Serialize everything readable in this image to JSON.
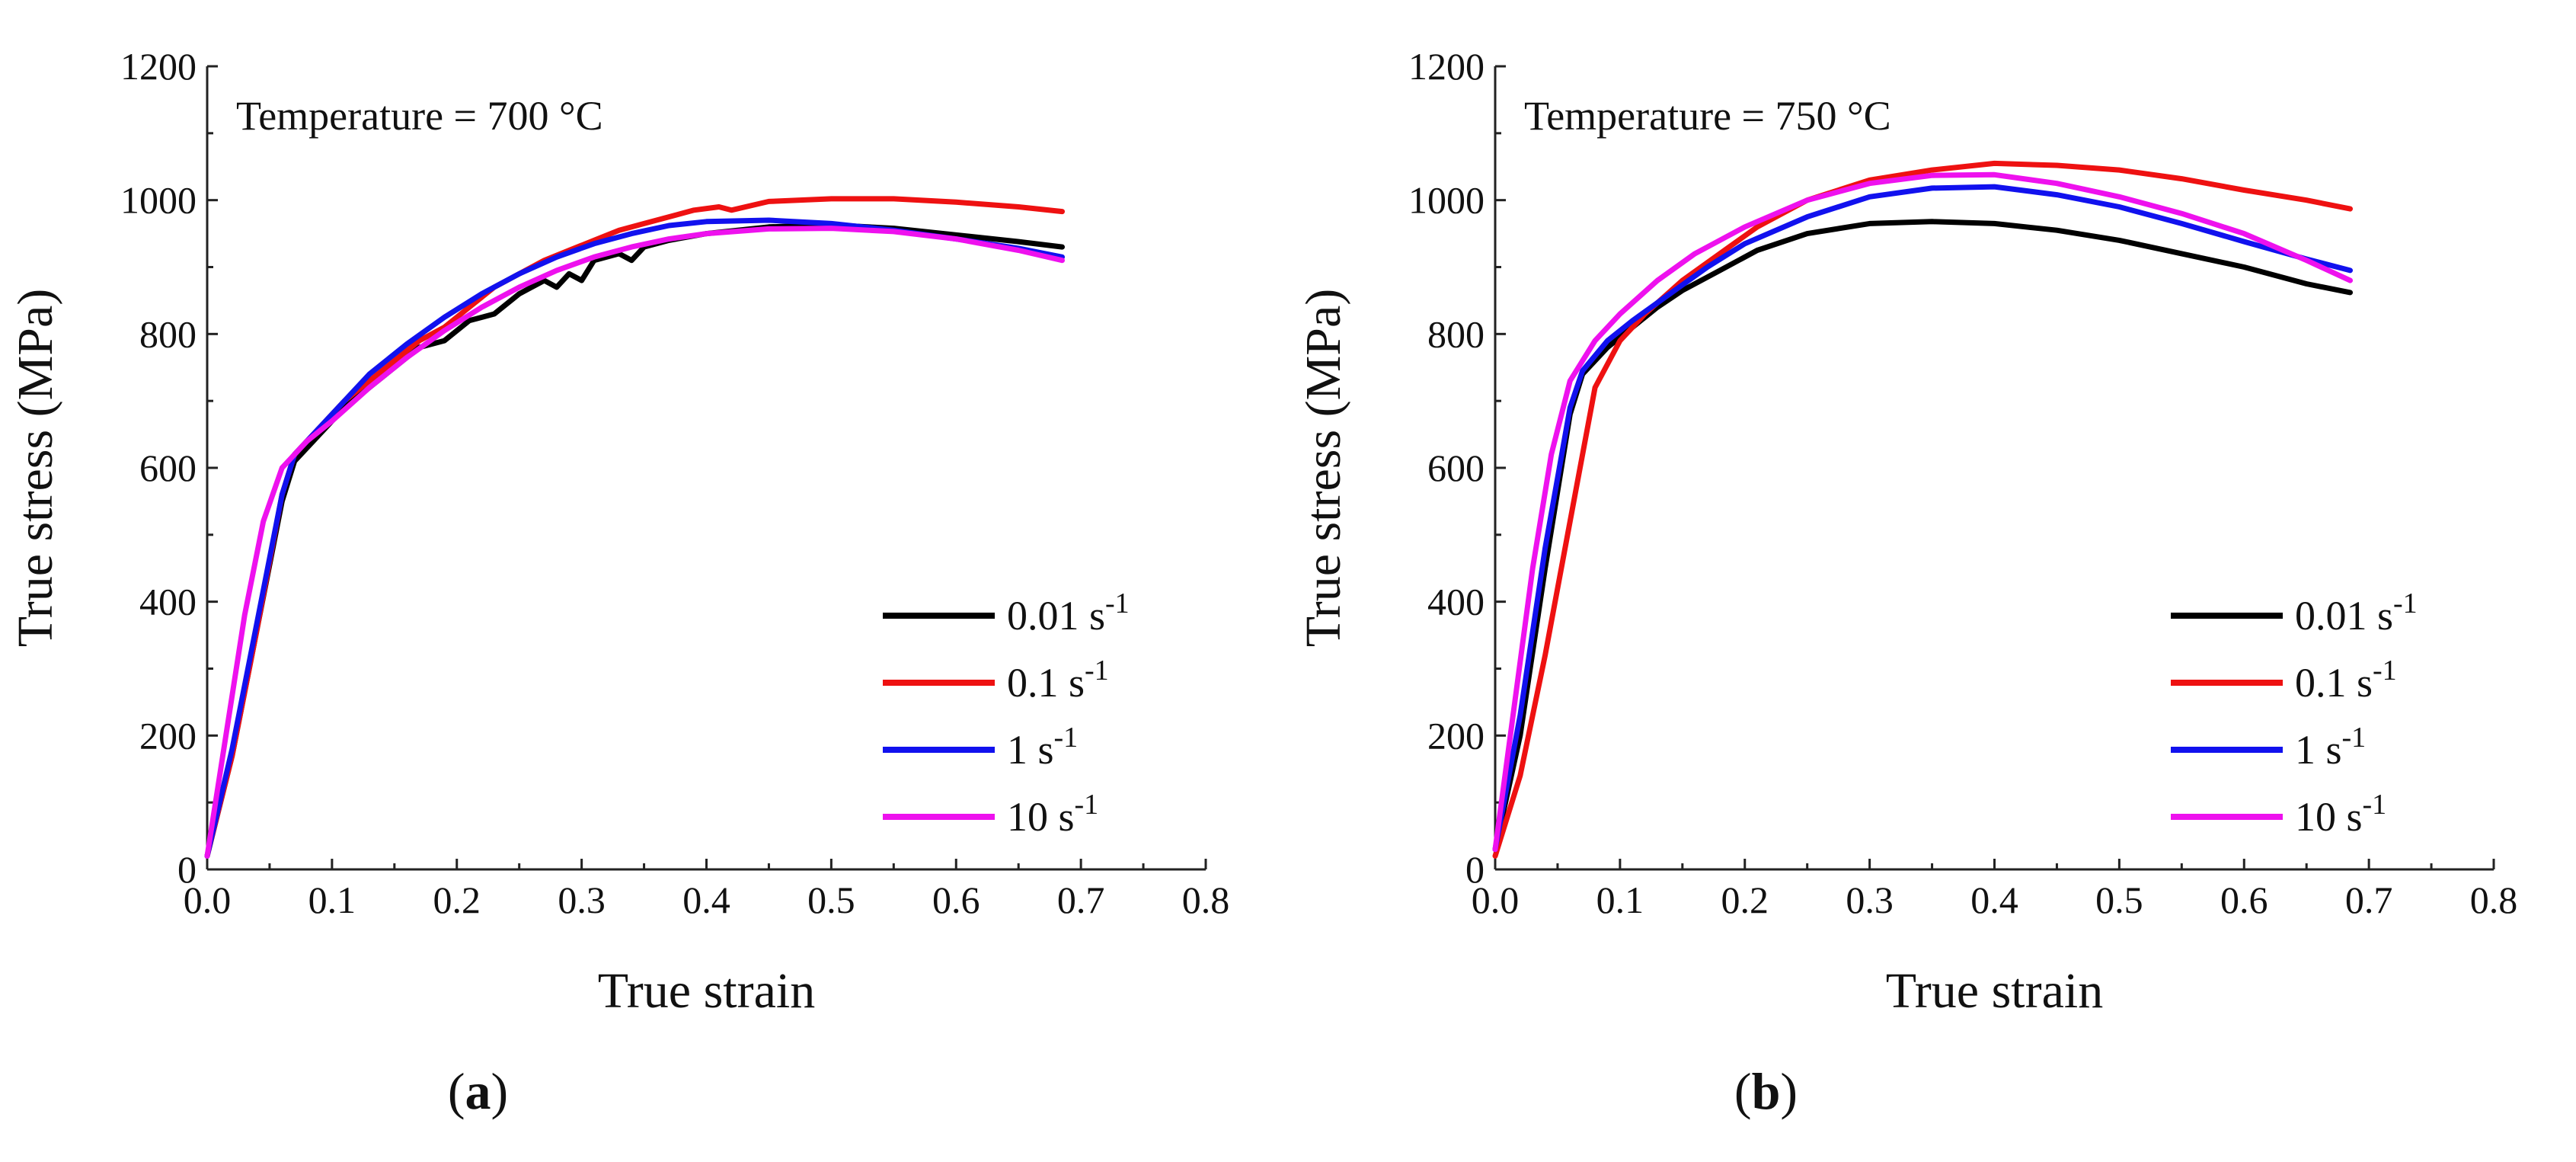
{
  "chart_data": [
    {
      "type": "line",
      "panel_label": "(a)",
      "annotation": "Temperature = 700 °C",
      "xlabel": "True strain",
      "ylabel": "True stress (MPa)",
      "xlim": [
        0,
        0.8
      ],
      "ylim": [
        0,
        1200
      ],
      "xticks": [
        "0.0",
        "0.1",
        "0.2",
        "0.3",
        "0.4",
        "0.5",
        "0.6",
        "0.7",
        "0.8"
      ],
      "yticks": [
        "0",
        "200",
        "400",
        "600",
        "800",
        "1000",
        "1200"
      ],
      "grid": false,
      "legend_position": "bottom-right",
      "series": [
        {
          "name": "0.01 s-1",
          "color": "#000000",
          "x": [
            0,
            0.02,
            0.04,
            0.06,
            0.07,
            0.09,
            0.11,
            0.13,
            0.15,
            0.17,
            0.19,
            0.21,
            0.23,
            0.25,
            0.27,
            0.28,
            0.29,
            0.3,
            0.31,
            0.33,
            0.34,
            0.35,
            0.37,
            0.4,
            0.45,
            0.5,
            0.55,
            0.6,
            0.65,
            0.685
          ],
          "y": [
            20,
            170,
            360,
            550,
            610,
            650,
            690,
            720,
            750,
            780,
            790,
            820,
            830,
            860,
            880,
            870,
            890,
            880,
            910,
            920,
            910,
            930,
            940,
            950,
            960,
            963,
            958,
            948,
            938,
            930
          ]
        },
        {
          "name": "0.1 s-1",
          "color": "#ee1111",
          "x": [
            0,
            0.02,
            0.04,
            0.06,
            0.07,
            0.09,
            0.11,
            0.13,
            0.15,
            0.17,
            0.19,
            0.21,
            0.23,
            0.25,
            0.27,
            0.29,
            0.31,
            0.33,
            0.35,
            0.37,
            0.39,
            0.41,
            0.42,
            0.45,
            0.5,
            0.55,
            0.6,
            0.65,
            0.685
          ],
          "y": [
            20,
            170,
            360,
            560,
            620,
            660,
            700,
            730,
            760,
            790,
            810,
            840,
            870,
            890,
            910,
            925,
            940,
            955,
            965,
            975,
            985,
            990,
            985,
            998,
            1002,
            1002,
            997,
            990,
            983
          ]
        },
        {
          "name": "1 s-1",
          "color": "#1111ee",
          "x": [
            0,
            0.02,
            0.04,
            0.06,
            0.07,
            0.1,
            0.13,
            0.16,
            0.19,
            0.22,
            0.25,
            0.28,
            0.31,
            0.34,
            0.37,
            0.4,
            0.45,
            0.5,
            0.55,
            0.6,
            0.65,
            0.685
          ],
          "y": [
            20,
            180,
            370,
            560,
            620,
            680,
            740,
            785,
            825,
            860,
            890,
            915,
            935,
            950,
            962,
            968,
            970,
            965,
            955,
            942,
            928,
            915
          ]
        },
        {
          "name": "10 s-1",
          "color": "#ee11ee",
          "x": [
            0,
            0.015,
            0.03,
            0.045,
            0.06,
            0.08,
            0.1,
            0.13,
            0.16,
            0.19,
            0.22,
            0.25,
            0.28,
            0.31,
            0.34,
            0.37,
            0.4,
            0.45,
            0.5,
            0.55,
            0.6,
            0.65,
            0.685
          ],
          "y": [
            20,
            200,
            380,
            520,
            600,
            640,
            670,
            720,
            765,
            805,
            840,
            870,
            895,
            915,
            930,
            942,
            950,
            957,
            958,
            953,
            942,
            925,
            910
          ]
        }
      ]
    },
    {
      "type": "line",
      "panel_label": "(b)",
      "annotation": "Temperature = 750 °C",
      "xlabel": "True strain",
      "ylabel": "True stress (MPa)",
      "xlim": [
        0,
        0.8
      ],
      "ylim": [
        0,
        1200
      ],
      "xticks": [
        "0.0",
        "0.1",
        "0.2",
        "0.3",
        "0.4",
        "0.5",
        "0.6",
        "0.7",
        "0.8"
      ],
      "yticks": [
        "0",
        "200",
        "400",
        "600",
        "800",
        "1000",
        "1200"
      ],
      "grid": false,
      "legend_position": "bottom-right",
      "series": [
        {
          "name": "0.01 s-1",
          "color": "#000000",
          "x": [
            0,
            0.02,
            0.04,
            0.06,
            0.07,
            0.09,
            0.11,
            0.13,
            0.15,
            0.18,
            0.21,
            0.25,
            0.3,
            0.35,
            0.4,
            0.45,
            0.5,
            0.55,
            0.6,
            0.65,
            0.685
          ],
          "y": [
            30,
            200,
            450,
            680,
            740,
            780,
            810,
            840,
            865,
            895,
            925,
            950,
            965,
            968,
            965,
            955,
            940,
            920,
            900,
            875,
            862
          ]
        },
        {
          "name": "0.1 s-1",
          "color": "#ee1111",
          "x": [
            0,
            0.02,
            0.04,
            0.06,
            0.08,
            0.1,
            0.12,
            0.15,
            0.18,
            0.21,
            0.25,
            0.3,
            0.35,
            0.4,
            0.45,
            0.5,
            0.55,
            0.6,
            0.65,
            0.685
          ],
          "y": [
            20,
            140,
            320,
            520,
            720,
            790,
            830,
            880,
            920,
            960,
            1000,
            1030,
            1045,
            1055,
            1052,
            1045,
            1032,
            1015,
            1000,
            987
          ]
        },
        {
          "name": "1 s-1",
          "color": "#1111ee",
          "x": [
            0,
            0.02,
            0.04,
            0.06,
            0.07,
            0.09,
            0.11,
            0.14,
            0.17,
            0.2,
            0.25,
            0.3,
            0.35,
            0.4,
            0.45,
            0.5,
            0.55,
            0.6,
            0.65,
            0.685
          ],
          "y": [
            30,
            230,
            480,
            690,
            745,
            790,
            820,
            860,
            900,
            935,
            975,
            1005,
            1018,
            1020,
            1008,
            990,
            965,
            938,
            912,
            895
          ]
        },
        {
          "name": "10 s-1",
          "color": "#ee11ee",
          "x": [
            0,
            0.015,
            0.03,
            0.045,
            0.06,
            0.08,
            0.1,
            0.13,
            0.16,
            0.2,
            0.25,
            0.3,
            0.35,
            0.4,
            0.45,
            0.5,
            0.55,
            0.6,
            0.65,
            0.685
          ],
          "y": [
            30,
            240,
            450,
            620,
            730,
            790,
            830,
            880,
            920,
            960,
            1000,
            1025,
            1037,
            1038,
            1025,
            1005,
            980,
            950,
            910,
            880
          ]
        }
      ]
    }
  ]
}
